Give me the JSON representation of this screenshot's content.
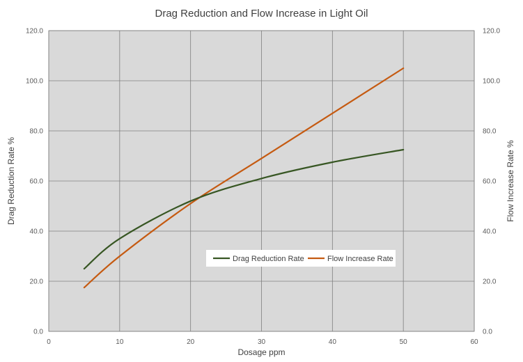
{
  "chart_data": {
    "type": "line",
    "title": "Drag Reduction and Flow Increase in Light Oil",
    "xlabel": "Dosage  ppm",
    "ylabel_left": "Drag Reduction Rate  %",
    "ylabel_right": "Flow Increase  Rate  %",
    "xlim": [
      0,
      60
    ],
    "ylim_left": [
      0,
      120
    ],
    "ylim_right": [
      0,
      120
    ],
    "x_ticks": [
      "0",
      "10",
      "20",
      "30",
      "40",
      "50",
      "60"
    ],
    "y_ticks_left": [
      "0.0",
      "20.0",
      "40.0",
      "60.0",
      "80.0",
      "100.0",
      "120.0"
    ],
    "y_ticks_right": [
      "0.0",
      "20.0",
      "40.0",
      "60.0",
      "80.0",
      "100.0",
      "120.0"
    ],
    "grid": true,
    "legend_position": "inside-lower-right",
    "series": [
      {
        "name": "Drag Reduction Rate",
        "axis": "left",
        "color": "#375623",
        "x": [
          5,
          10,
          20,
          30,
          40,
          50
        ],
        "y": [
          25,
          37,
          52,
          61,
          67.5,
          72.5
        ]
      },
      {
        "name": "Flow Increase Rate",
        "axis": "right",
        "color": "#C55A11",
        "x": [
          5,
          10,
          20,
          30,
          40,
          50
        ],
        "y": [
          17.5,
          30,
          51,
          69,
          87,
          105
        ]
      }
    ],
    "colors": {
      "plot_background": "#D9D9D9",
      "gridline": "#7F7F7F"
    }
  }
}
